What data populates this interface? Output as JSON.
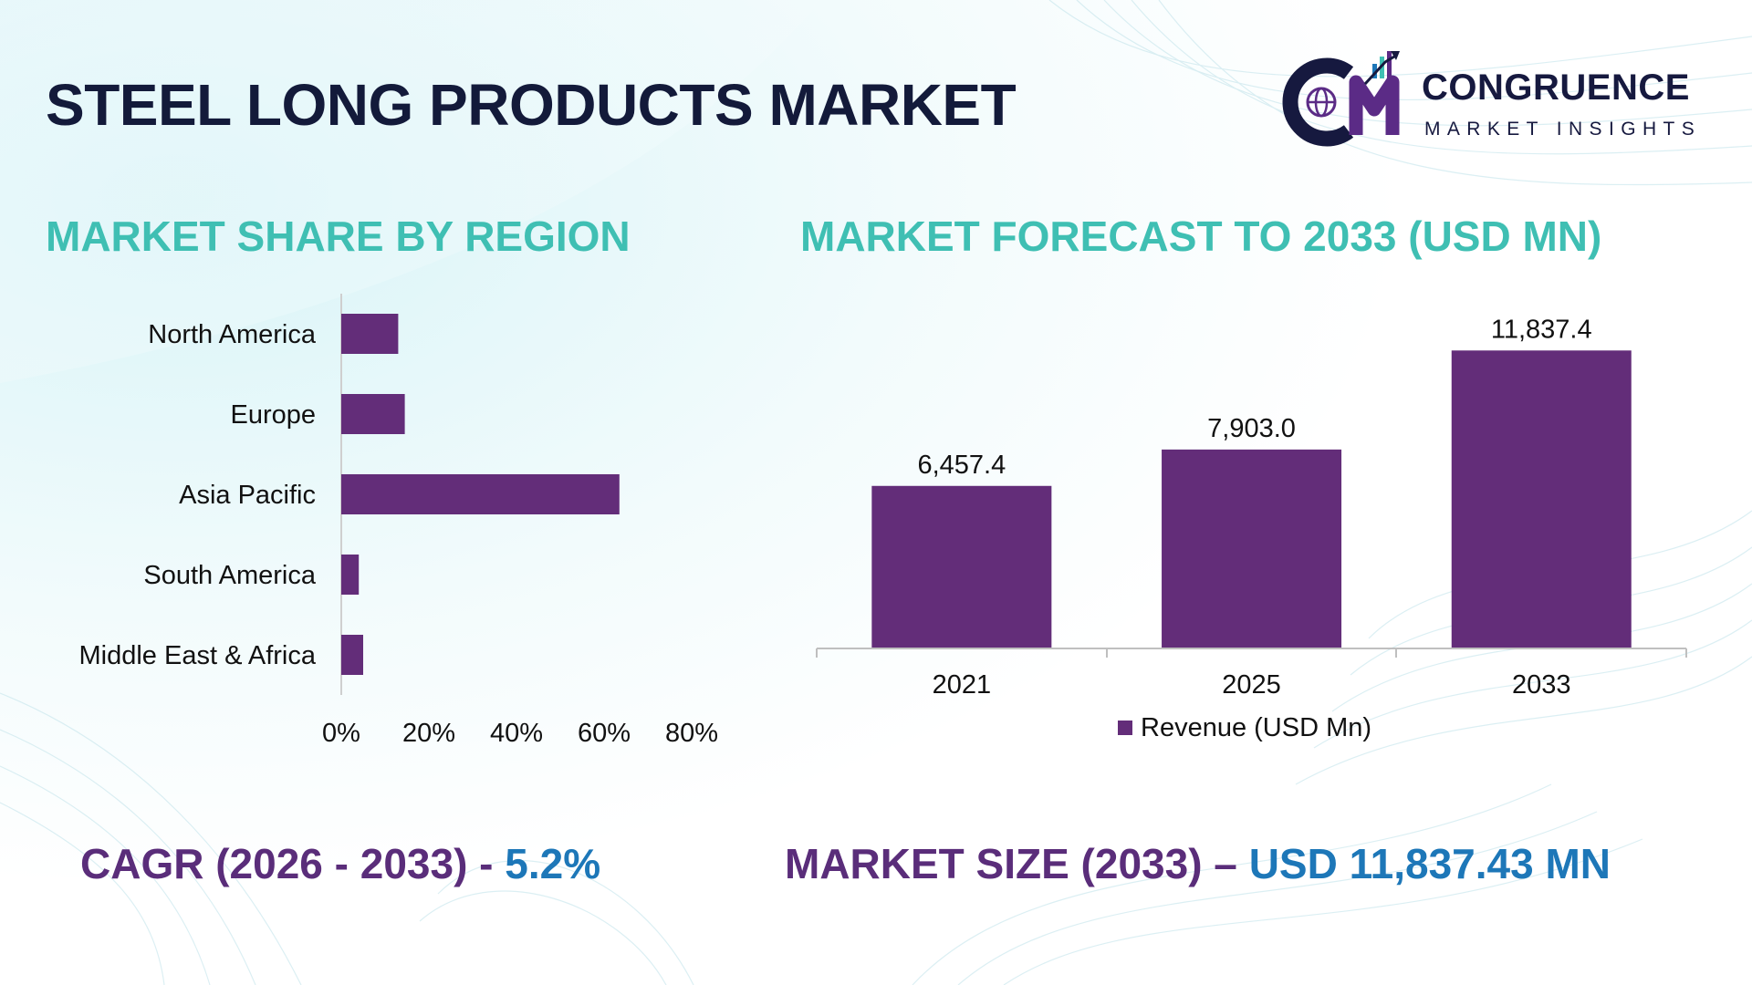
{
  "title": "STEEL LONG PRODUCTS MARKET",
  "logo": {
    "name": "CONGRUENCE",
    "tagline": "MARKET INSIGHTS",
    "icon": "cm-globe-logo-icon"
  },
  "colors": {
    "bar": "#632d79",
    "teal": "#3fbfb3",
    "navy": "#131a3a",
    "purple_text": "#5a2d7a",
    "blue_text": "#1d77b8"
  },
  "chart_data": [
    {
      "type": "bar",
      "orientation": "horizontal",
      "title": "MARKET SHARE BY REGION",
      "categories": [
        "North America",
        "Europe",
        "Asia Pacific",
        "South America",
        "Middle East & Africa"
      ],
      "values": [
        13,
        14.5,
        63.5,
        4,
        5
      ],
      "xlim": [
        0,
        80
      ],
      "xticks": [
        "0%",
        "20%",
        "40%",
        "60%",
        "80%"
      ],
      "grid": false
    },
    {
      "type": "bar",
      "title": "MARKET FORECAST TO 2033 (USD MN)",
      "categories": [
        "2021",
        "2025",
        "2033"
      ],
      "series": [
        {
          "name": "Revenue (USD Mn)",
          "values": [
            6457.4,
            7903.0,
            11837.4
          ]
        }
      ],
      "data_labels": [
        "6,457.4",
        "7,903.0",
        "11,837.4"
      ],
      "ylim": [
        0,
        12500
      ],
      "legend": "bottom",
      "grid": false
    }
  ],
  "stats": {
    "cagr_label": "CAGR (2026 - 2033) - ",
    "cagr_value": "5.2%",
    "size_label": "MARKET SIZE (2033) – ",
    "size_value": "USD 11,837.43 MN"
  }
}
